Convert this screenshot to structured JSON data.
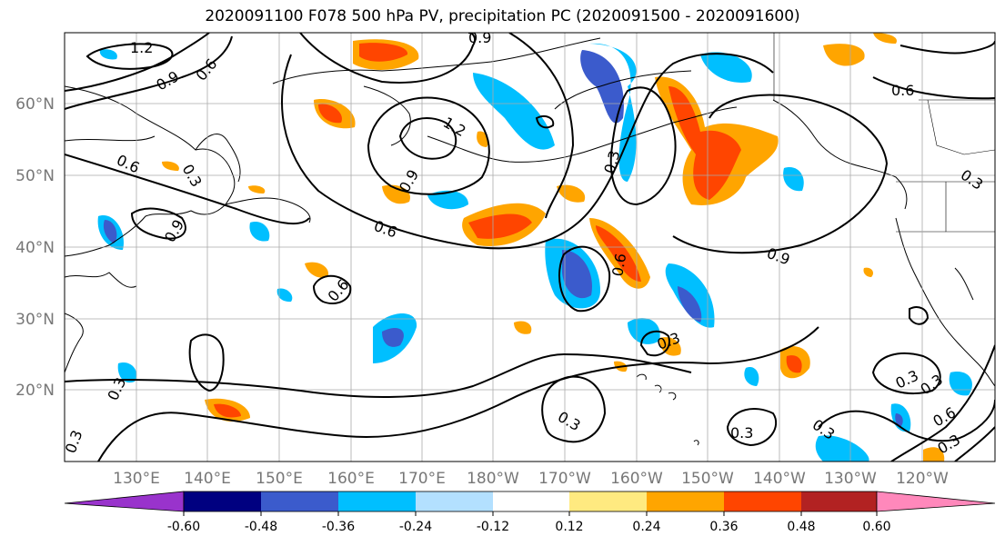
{
  "title": "2020091100 F078 500 hPa PV, precipitation PC (2020091500 - 2020091600)",
  "map": {
    "lat_ticks": [
      "60°N",
      "50°N",
      "40°N",
      "30°N",
      "20°N"
    ],
    "lon_ticks": [
      "130°E",
      "140°E",
      "150°E",
      "160°E",
      "170°E",
      "180°W",
      "170°W",
      "160°W",
      "150°W",
      "140°W",
      "130°W",
      "120°W"
    ],
    "pv_contour_labels": [
      "1.2",
      "0.9",
      "0.6",
      "0.6",
      "1.2",
      "0.9",
      "0.6",
      "0.3",
      "0.6",
      "0.9",
      "0.9",
      "0.3",
      "0.6",
      "0.6",
      "0.9",
      "0.3",
      "0.3",
      "0.3",
      "0.3",
      "0.3",
      "0.3",
      "0.6",
      "0.3",
      "0.3",
      "0.3",
      "0.3"
    ]
  },
  "colorbar": {
    "tick_labels": [
      "-0.60",
      "-0.48",
      "-0.36",
      "-0.24",
      "-0.12",
      "0.12",
      "0.24",
      "0.36",
      "0.48",
      "0.60"
    ],
    "colors": {
      "under": "#9933cc",
      "bins": [
        "#000080",
        "#3b5bcc",
        "#00bfff",
        "#b3e0ff",
        "#ffffff",
        "#ffea80",
        "#ffa500",
        "#ff4500",
        "#b22222"
      ],
      "over": "#ff88bb"
    }
  }
}
